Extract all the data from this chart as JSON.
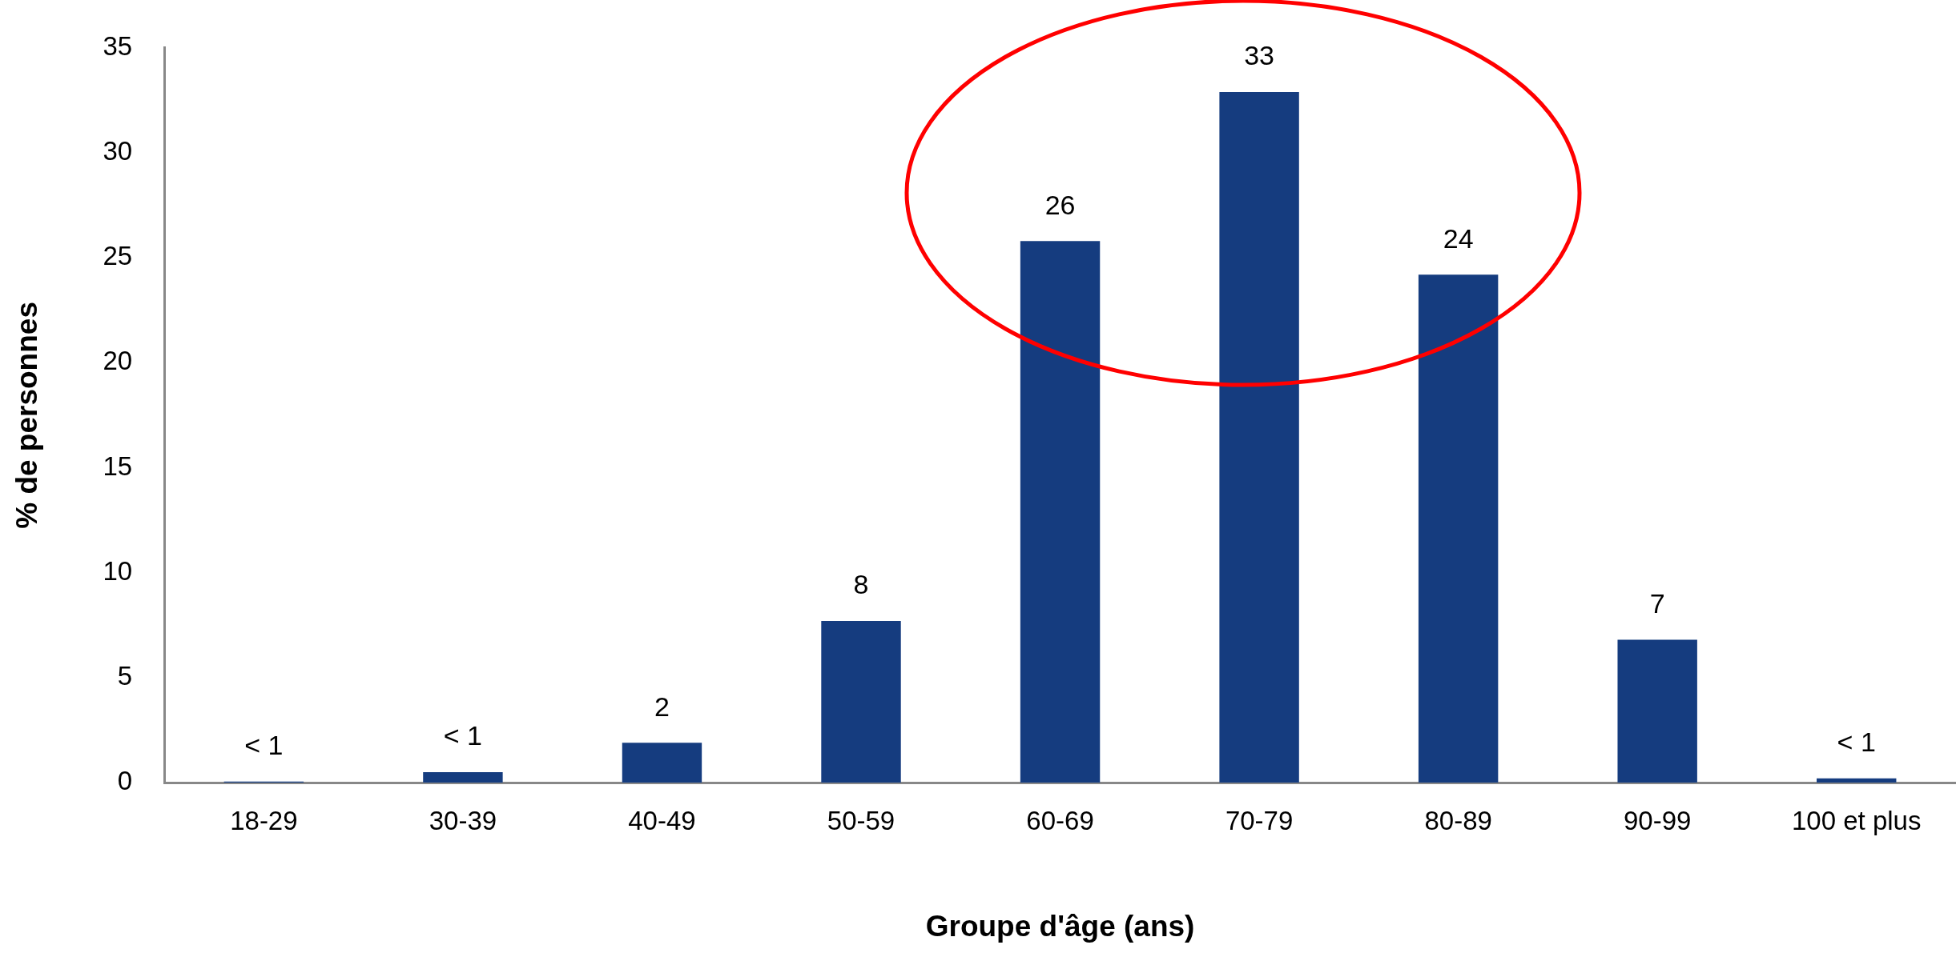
{
  "chart_data": {
    "type": "bar",
    "xlabel": "Groupe d'âge (ans)",
    "ylabel": "% de personnes",
    "categories": [
      "18-29",
      "30-39",
      "40-49",
      "50-59",
      "60-69",
      "70-79",
      "80-89",
      "90-99",
      "100 et plus"
    ],
    "values": [
      0.05,
      0.5,
      1.9,
      7.7,
      25.8,
      32.9,
      24.2,
      6.8,
      0.2
    ],
    "value_labels": [
      "< 1",
      "< 1",
      "2",
      "8",
      "26",
      "33",
      "24",
      "7",
      "< 1"
    ],
    "color": "#153c7f",
    "ylim": [
      0,
      35
    ],
    "yticks": [
      0,
      5,
      10,
      15,
      20,
      25,
      30,
      35
    ]
  }
}
